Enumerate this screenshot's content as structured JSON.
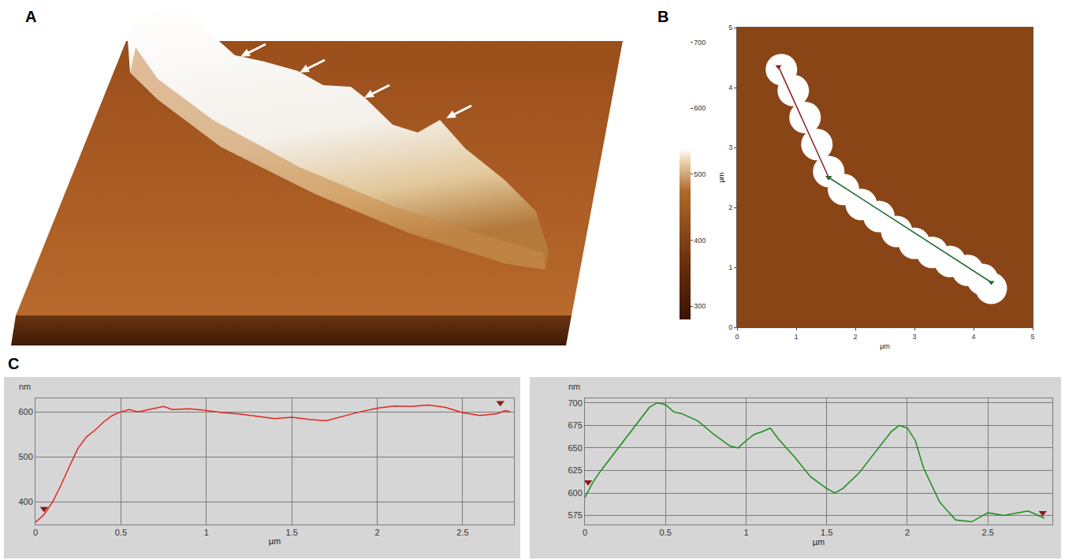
{
  "chart_data": [
    {
      "panel": "A",
      "type": "image3d"
    },
    {
      "panel": "B",
      "type": "image",
      "x_label": "µm",
      "y_label": "µm",
      "xlim": [
        0,
        5
      ],
      "ylim": [
        0,
        5
      ],
      "xticks": [
        0,
        1,
        2,
        3,
        4,
        5
      ],
      "yticks": [
        0,
        1,
        2,
        3,
        4,
        5
      ],
      "colorbar": {
        "range": [
          280,
          710
        ],
        "ticks": [
          300,
          400,
          500,
          600,
          700
        ]
      },
      "cell": {
        "x": [
          0.75,
          0.95,
          1.15,
          1.35,
          1.55,
          1.8,
          2.1,
          2.4,
          2.7,
          3.0,
          3.3,
          3.6,
          3.9,
          4.15,
          4.3
        ],
        "y": [
          4.3,
          3.95,
          3.5,
          3.05,
          2.6,
          2.3,
          2.05,
          1.85,
          1.6,
          1.4,
          1.25,
          1.1,
          0.95,
          0.8,
          0.65
        ],
        "heights": [
          560,
          600,
          605,
          600,
          610,
          650,
          690,
          660,
          650,
          670,
          620,
          600,
          590,
          580,
          560
        ]
      },
      "profiles": [
        {
          "color": "#8b1a1a",
          "x": [
            0.7,
            1.55
          ],
          "y": [
            4.35,
            2.5
          ]
        },
        {
          "color": "#1e6e2e",
          "x": [
            1.55,
            4.3
          ],
          "y": [
            2.5,
            0.75
          ]
        }
      ],
      "marker": "triangle-down"
    },
    {
      "panel": "C",
      "type": "line",
      "x_label": "µm",
      "y_label": "nm",
      "xlim": [
        0,
        2.8
      ],
      "ylim": [
        350,
        630
      ],
      "xticks": [
        0,
        0.5,
        1,
        1.5,
        2,
        2.5
      ],
      "yticks": [
        400,
        500,
        600
      ],
      "grid": true,
      "x": [
        0,
        0.05,
        0.1,
        0.15,
        0.2,
        0.25,
        0.3,
        0.35,
        0.4,
        0.45,
        0.5,
        0.55,
        0.6,
        0.7,
        0.75,
        0.8,
        0.9,
        1.0,
        1.1,
        1.2,
        1.3,
        1.4,
        1.5,
        1.6,
        1.7,
        1.8,
        1.9,
        2.0,
        2.1,
        2.2,
        2.3,
        2.4,
        2.5,
        2.6,
        2.7,
        2.75,
        2.78
      ],
      "series": [
        {
          "color": "#e3261e",
          "values": [
            355,
            372,
            400,
            438,
            480,
            520,
            545,
            560,
            578,
            592,
            600,
            605,
            600,
            608,
            612,
            605,
            607,
            603,
            598,
            595,
            590,
            585,
            588,
            583,
            580,
            590,
            600,
            608,
            613,
            612,
            615,
            610,
            598,
            592,
            596,
            603,
            600
          ]
        }
      ],
      "end_markers": {
        "x": [
          0.05,
          2.72
        ],
        "y": [
          385,
          620
        ],
        "color": "#8b1a1a",
        "marker": "triangle-down"
      }
    },
    {
      "type": "line",
      "x_label": "µm",
      "y_label": "nm",
      "xlim": [
        0,
        2.9
      ],
      "ylim": [
        565,
        705
      ],
      "xticks": [
        0,
        0.5,
        1,
        1.5,
        2,
        2.5
      ],
      "yticks": [
        575,
        600,
        625,
        650,
        675,
        700
      ],
      "grid": true,
      "x": [
        0,
        0.05,
        0.1,
        0.2,
        0.3,
        0.4,
        0.45,
        0.5,
        0.55,
        0.6,
        0.7,
        0.8,
        0.9,
        0.95,
        1.0,
        1.05,
        1.1,
        1.15,
        1.2,
        1.3,
        1.4,
        1.5,
        1.55,
        1.6,
        1.7,
        1.8,
        1.9,
        1.95,
        2.0,
        2.05,
        2.1,
        2.2,
        2.3,
        2.4,
        2.5,
        2.6,
        2.7,
        2.75,
        2.85
      ],
      "series": [
        {
          "color": "#1a8c1a",
          "values": [
            595,
            612,
            625,
            648,
            672,
            695,
            700,
            698,
            690,
            688,
            680,
            665,
            652,
            650,
            658,
            665,
            668,
            672,
            660,
            640,
            618,
            605,
            600,
            605,
            622,
            645,
            668,
            675,
            672,
            658,
            628,
            590,
            570,
            568,
            578,
            575,
            578,
            580,
            572
          ]
        }
      ],
      "end_markers": {
        "x": [
          0.02,
          2.84
        ],
        "y": [
          612,
          578
        ],
        "color": "#8b1a1a",
        "marker": "triangle-down"
      }
    }
  ]
}
